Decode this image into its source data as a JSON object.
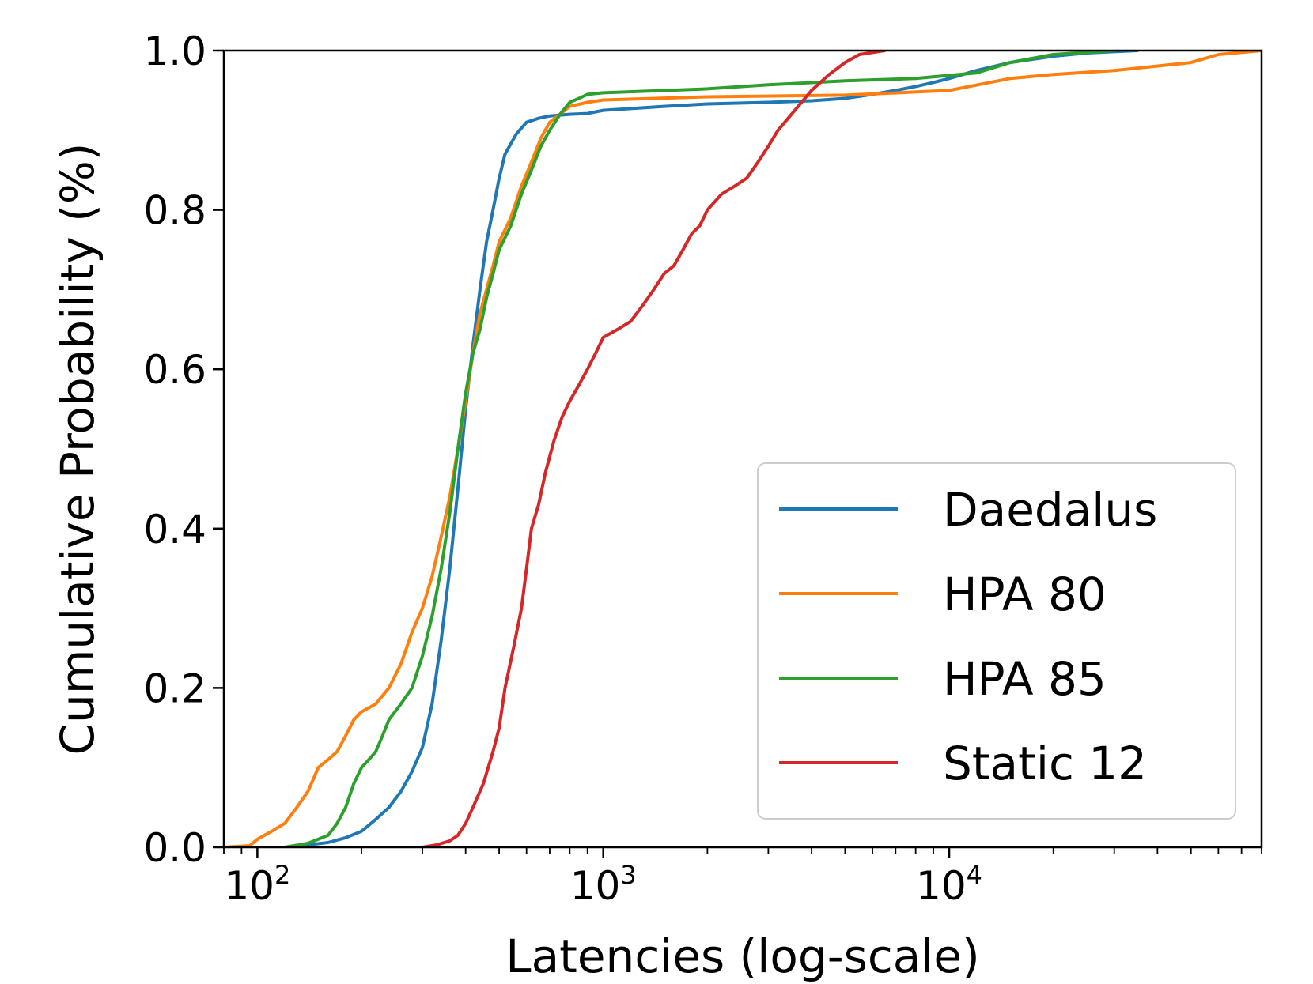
{
  "chart_data": {
    "type": "line",
    "title": "",
    "xlabel": "Latencies (log-scale)",
    "ylabel": "Cumulative Probability (%)",
    "xscale": "log",
    "xlim": [
      80,
      80000
    ],
    "ylim": [
      0.0,
      1.0
    ],
    "grid": false,
    "legend_position": "lower-right",
    "x_ticks": [
      {
        "value": 100,
        "base": "10",
        "exp": "2"
      },
      {
        "value": 1000,
        "base": "10",
        "exp": "3"
      },
      {
        "value": 10000,
        "base": "10",
        "exp": "4"
      }
    ],
    "y_ticks": [
      {
        "value": 0.0,
        "label": "0.0"
      },
      {
        "value": 0.2,
        "label": "0.2"
      },
      {
        "value": 0.4,
        "label": "0.4"
      },
      {
        "value": 0.6,
        "label": "0.6"
      },
      {
        "value": 0.8,
        "label": "0.8"
      },
      {
        "value": 1.0,
        "label": "1.0"
      }
    ],
    "series": [
      {
        "name": "Daedalus",
        "color": "#1f77b4",
        "points": [
          [
            80,
            0.0
          ],
          [
            120,
            0.0
          ],
          [
            140,
            0.003
          ],
          [
            160,
            0.006
          ],
          [
            180,
            0.012
          ],
          [
            200,
            0.02
          ],
          [
            220,
            0.035
          ],
          [
            240,
            0.05
          ],
          [
            260,
            0.07
          ],
          [
            280,
            0.095
          ],
          [
            300,
            0.125
          ],
          [
            320,
            0.18
          ],
          [
            340,
            0.26
          ],
          [
            360,
            0.35
          ],
          [
            380,
            0.45
          ],
          [
            400,
            0.55
          ],
          [
            420,
            0.63
          ],
          [
            440,
            0.7
          ],
          [
            460,
            0.76
          ],
          [
            480,
            0.8
          ],
          [
            500,
            0.84
          ],
          [
            520,
            0.87
          ],
          [
            560,
            0.895
          ],
          [
            600,
            0.91
          ],
          [
            650,
            0.915
          ],
          [
            700,
            0.918
          ],
          [
            800,
            0.92
          ],
          [
            900,
            0.921
          ],
          [
            1000,
            0.925
          ],
          [
            1500,
            0.93
          ],
          [
            2000,
            0.933
          ],
          [
            3000,
            0.935
          ],
          [
            4000,
            0.937
          ],
          [
            5000,
            0.94
          ],
          [
            6000,
            0.945
          ],
          [
            7000,
            0.95
          ],
          [
            8000,
            0.955
          ],
          [
            9000,
            0.96
          ],
          [
            10000,
            0.965
          ],
          [
            12000,
            0.975
          ],
          [
            15000,
            0.985
          ],
          [
            20000,
            0.993
          ],
          [
            25000,
            0.997
          ],
          [
            35000,
            1.0
          ]
        ]
      },
      {
        "name": "HPA 80",
        "color": "#ff7f0e",
        "points": [
          [
            80,
            0.0
          ],
          [
            95,
            0.002
          ],
          [
            100,
            0.01
          ],
          [
            110,
            0.02
          ],
          [
            120,
            0.03
          ],
          [
            130,
            0.05
          ],
          [
            140,
            0.07
          ],
          [
            150,
            0.1
          ],
          [
            160,
            0.11
          ],
          [
            170,
            0.12
          ],
          [
            180,
            0.14
          ],
          [
            190,
            0.16
          ],
          [
            200,
            0.17
          ],
          [
            220,
            0.18
          ],
          [
            240,
            0.2
          ],
          [
            260,
            0.23
          ],
          [
            280,
            0.27
          ],
          [
            300,
            0.3
          ],
          [
            320,
            0.34
          ],
          [
            340,
            0.39
          ],
          [
            360,
            0.44
          ],
          [
            380,
            0.5
          ],
          [
            400,
            0.56
          ],
          [
            420,
            0.62
          ],
          [
            440,
            0.67
          ],
          [
            460,
            0.7
          ],
          [
            480,
            0.73
          ],
          [
            500,
            0.76
          ],
          [
            540,
            0.79
          ],
          [
            580,
            0.83
          ],
          [
            620,
            0.86
          ],
          [
            660,
            0.89
          ],
          [
            700,
            0.91
          ],
          [
            750,
            0.92
          ],
          [
            800,
            0.93
          ],
          [
            900,
            0.935
          ],
          [
            1000,
            0.938
          ],
          [
            2000,
            0.942
          ],
          [
            5000,
            0.944
          ],
          [
            10000,
            0.95
          ],
          [
            15000,
            0.965
          ],
          [
            20000,
            0.97
          ],
          [
            30000,
            0.975
          ],
          [
            50000,
            0.985
          ],
          [
            60000,
            0.995
          ],
          [
            80000,
            1.0
          ]
        ]
      },
      {
        "name": "HPA 85",
        "color": "#2ca02c",
        "points": [
          [
            80,
            0.0
          ],
          [
            120,
            0.0
          ],
          [
            140,
            0.005
          ],
          [
            160,
            0.015
          ],
          [
            170,
            0.03
          ],
          [
            180,
            0.05
          ],
          [
            190,
            0.08
          ],
          [
            200,
            0.1
          ],
          [
            210,
            0.11
          ],
          [
            220,
            0.12
          ],
          [
            230,
            0.14
          ],
          [
            240,
            0.16
          ],
          [
            260,
            0.18
          ],
          [
            280,
            0.2
          ],
          [
            300,
            0.24
          ],
          [
            320,
            0.29
          ],
          [
            340,
            0.35
          ],
          [
            360,
            0.42
          ],
          [
            380,
            0.5
          ],
          [
            400,
            0.57
          ],
          [
            420,
            0.62
          ],
          [
            440,
            0.65
          ],
          [
            460,
            0.69
          ],
          [
            480,
            0.72
          ],
          [
            500,
            0.75
          ],
          [
            540,
            0.78
          ],
          [
            580,
            0.82
          ],
          [
            620,
            0.85
          ],
          [
            660,
            0.88
          ],
          [
            700,
            0.9
          ],
          [
            750,
            0.92
          ],
          [
            800,
            0.935
          ],
          [
            850,
            0.94
          ],
          [
            900,
            0.945
          ],
          [
            1000,
            0.947
          ],
          [
            2000,
            0.952
          ],
          [
            3000,
            0.957
          ],
          [
            5000,
            0.962
          ],
          [
            8000,
            0.965
          ],
          [
            12000,
            0.972
          ],
          [
            15000,
            0.985
          ],
          [
            20000,
            0.995
          ],
          [
            30000,
            1.0
          ]
        ]
      },
      {
        "name": "Static 12",
        "color": "#d62728",
        "points": [
          [
            300,
            0.0
          ],
          [
            330,
            0.003
          ],
          [
            360,
            0.008
          ],
          [
            380,
            0.015
          ],
          [
            400,
            0.03
          ],
          [
            420,
            0.05
          ],
          [
            450,
            0.08
          ],
          [
            480,
            0.12
          ],
          [
            500,
            0.15
          ],
          [
            520,
            0.2
          ],
          [
            550,
            0.25
          ],
          [
            580,
            0.3
          ],
          [
            600,
            0.35
          ],
          [
            620,
            0.4
          ],
          [
            650,
            0.43
          ],
          [
            680,
            0.47
          ],
          [
            720,
            0.51
          ],
          [
            760,
            0.54
          ],
          [
            800,
            0.56
          ],
          [
            850,
            0.58
          ],
          [
            900,
            0.6
          ],
          [
            950,
            0.62
          ],
          [
            1000,
            0.64
          ],
          [
            1100,
            0.65
          ],
          [
            1200,
            0.66
          ],
          [
            1300,
            0.68
          ],
          [
            1400,
            0.7
          ],
          [
            1500,
            0.72
          ],
          [
            1600,
            0.73
          ],
          [
            1700,
            0.75
          ],
          [
            1800,
            0.77
          ],
          [
            1900,
            0.78
          ],
          [
            2000,
            0.8
          ],
          [
            2200,
            0.82
          ],
          [
            2400,
            0.83
          ],
          [
            2600,
            0.84
          ],
          [
            2800,
            0.86
          ],
          [
            3000,
            0.88
          ],
          [
            3200,
            0.9
          ],
          [
            3500,
            0.92
          ],
          [
            4000,
            0.95
          ],
          [
            4500,
            0.97
          ],
          [
            5000,
            0.985
          ],
          [
            5500,
            0.995
          ],
          [
            6500,
            1.0
          ]
        ]
      }
    ]
  }
}
